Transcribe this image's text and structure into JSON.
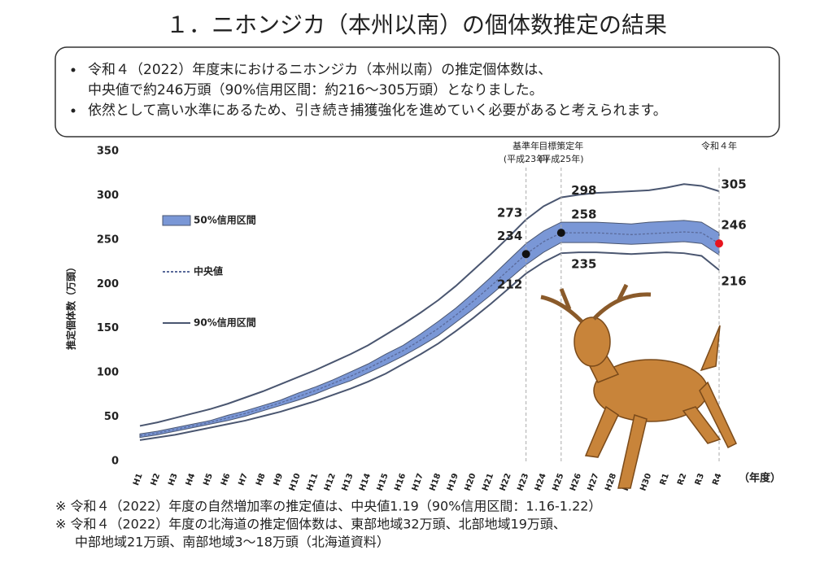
{
  "chart_data": {
    "type": "line",
    "title": "１．ニホンジカ（本州以南）の個体数推定の結果",
    "summary": [
      [
        "令和４（2022）年度末におけるニホンジカ（本州以南）の推定個体数は、",
        "中央値で約246万頭（90%信用区間：約216～305万頭）となりました。"
      ],
      [
        "依然として高い水準にあるため、引き続き捕獲強化を進めていく必要があると考えられます。"
      ]
    ],
    "footnotes": [
      [
        "※ 令和４（2022）年度の自然増加率の推定値は、中央値1.19（90%信用区間：1.16-1.22）"
      ],
      [
        "※ 令和４（2022）年度の北海道の推定個体数は、東部地域32万頭、北部地域19万頭、",
        "中部地域21万頭、南部地域3～18万頭（北海道資料）"
      ]
    ],
    "ylabel": "推定個体数（万頭）",
    "xlabel": "（年度）",
    "categories": [
      "H1",
      "H2",
      "H3",
      "H4",
      "H5",
      "H6",
      "H7",
      "H8",
      "H9",
      "H10",
      "H11",
      "H12",
      "H13",
      "H14",
      "H15",
      "H16",
      "H17",
      "H18",
      "H19",
      "H20",
      "H21",
      "H22",
      "H23",
      "H24",
      "H25",
      "H26",
      "H27",
      "H28",
      "H29",
      "H30",
      "R1",
      "R2",
      "R3",
      "R4"
    ],
    "ylim": [
      0,
      350
    ],
    "yticks": [
      0,
      50,
      100,
      150,
      200,
      250,
      300,
      350
    ],
    "series": [
      {
        "name": "50%信用区間",
        "color": "#7a97d6",
        "upper": [
          31,
          34,
          38,
          42,
          46,
          52,
          57,
          63,
          69,
          77,
          84,
          92,
          101,
          110,
          121,
          131,
          144,
          158,
          173,
          190,
          208,
          227,
          246,
          260,
          270,
          270,
          270,
          269,
          268,
          270,
          271,
          272,
          270,
          258
        ],
        "lower": [
          27,
          30,
          34,
          38,
          42,
          46,
          51,
          57,
          63,
          69,
          76,
          84,
          91,
          100,
          109,
          119,
          130,
          142,
          157,
          172,
          188,
          205,
          222,
          236,
          247,
          247,
          247,
          246,
          245,
          246,
          247,
          248,
          246,
          233
        ]
      },
      {
        "name": "中央値",
        "color": "#5a6a9a",
        "values": [
          29,
          32,
          36,
          40,
          44,
          49,
          54,
          60,
          66,
          73,
          80,
          88,
          96,
          105,
          115,
          125,
          137,
          150,
          165,
          181,
          198,
          216,
          234,
          248,
          258,
          258,
          258,
          257,
          256,
          257,
          258,
          259,
          258,
          246
        ]
      },
      {
        "name": "90%信用区間",
        "color": "#4a5670",
        "upper": [
          40,
          44,
          49,
          54,
          59,
          65,
          72,
          79,
          87,
          95,
          103,
          112,
          121,
          131,
          143,
          155,
          168,
          182,
          198,
          216,
          234,
          253,
          273,
          288,
          298,
          301,
          303,
          304,
          305,
          306,
          309,
          313,
          311,
          305
        ],
        "lower": [
          24,
          27,
          30,
          34,
          38,
          42,
          46,
          51,
          56,
          62,
          68,
          75,
          82,
          90,
          99,
          110,
          121,
          133,
          147,
          162,
          178,
          195,
          212,
          225,
          235,
          236,
          236,
          235,
          234,
          235,
          236,
          235,
          232,
          216
        ]
      }
    ],
    "reference_years": [
      {
        "category": "H23",
        "label": [
          "基準年",
          "(平成23年)"
        ],
        "marker_color": "#111111",
        "label_color": "#333333"
      },
      {
        "category": "H25",
        "label": [
          "目標策定年",
          "(平成25年)"
        ],
        "marker_color": "#111111",
        "label_color": "#333333"
      },
      {
        "category": "R4",
        "label": [
          "令和４年"
        ],
        "marker_color": "#e8141e",
        "label_color": "#e8141e"
      }
    ]
  }
}
